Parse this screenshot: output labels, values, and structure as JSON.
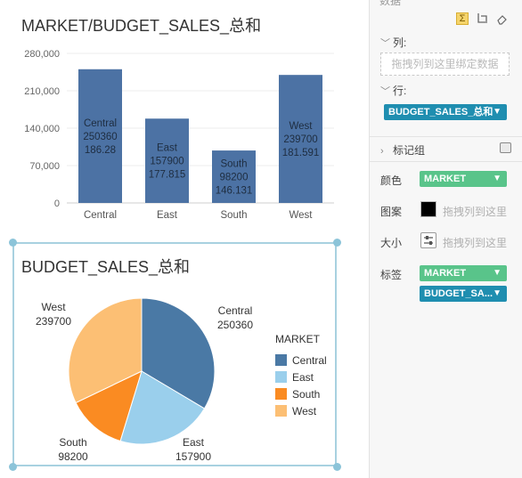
{
  "bar_chart": {
    "title": "MARKET/BUDGET_SALES_总和",
    "y_ticks": [
      "280,000",
      "210,000",
      "140,000",
      "70,000",
      "0"
    ],
    "bar_color": "#4c72a4",
    "bars": [
      {
        "category": "Central",
        "value": 250360,
        "label_lines": [
          "Central",
          "250360",
          "186.28"
        ]
      },
      {
        "category": "East",
        "value": 157900,
        "label_lines": [
          "East",
          "157900",
          "177.815"
        ]
      },
      {
        "category": "South",
        "value": 98200,
        "label_lines": [
          "South",
          "98200",
          "146.131"
        ]
      },
      {
        "category": "West",
        "value": 239700,
        "label_lines": [
          "West",
          "239700",
          "181.591"
        ]
      }
    ]
  },
  "pie_chart": {
    "title": "BUDGET_SALES_总和",
    "legend_title": "MARKET",
    "slices": [
      {
        "name": "Central",
        "value": 250360,
        "color": "#4a79a5"
      },
      {
        "name": "East",
        "value": 157900,
        "color": "#9acfec"
      },
      {
        "name": "South",
        "value": 98200,
        "color": "#fa8b22"
      },
      {
        "name": "West",
        "value": 239700,
        "color": "#fcbf74"
      }
    ]
  },
  "chart_data": [
    {
      "type": "bar",
      "title": "MARKET/BUDGET_SALES_总和",
      "categories": [
        "Central",
        "East",
        "South",
        "West"
      ],
      "values": [
        250360,
        157900,
        98200,
        239700
      ],
      "secondary_labels": [
        186.28,
        177.815,
        146.131,
        181.591
      ],
      "ylim": [
        0,
        280000
      ],
      "grid": true
    },
    {
      "type": "pie",
      "title": "BUDGET_SALES_总和",
      "categories": [
        "Central",
        "East",
        "South",
        "West"
      ],
      "values": [
        250360,
        157900,
        98200,
        239700
      ],
      "legend_title": "MARKET",
      "legend_placement": "right"
    }
  ],
  "panel": {
    "header_label": "数据",
    "columns_label": "列:",
    "columns_drop_hint": "拖拽列到这里绑定数据",
    "rows_label": "行:",
    "rows_field": "BUDGET_SALES_总和",
    "marks_label": "标记组",
    "color_label": "颜色",
    "color_field": "MARKET",
    "shape_label": "图案",
    "shape_hint": "拖拽列到这里",
    "size_label": "大小",
    "size_hint": "拖拽列到这里",
    "label_label": "标签",
    "label_field_1": "MARKET",
    "label_field_2": "BUDGET_SA..."
  }
}
